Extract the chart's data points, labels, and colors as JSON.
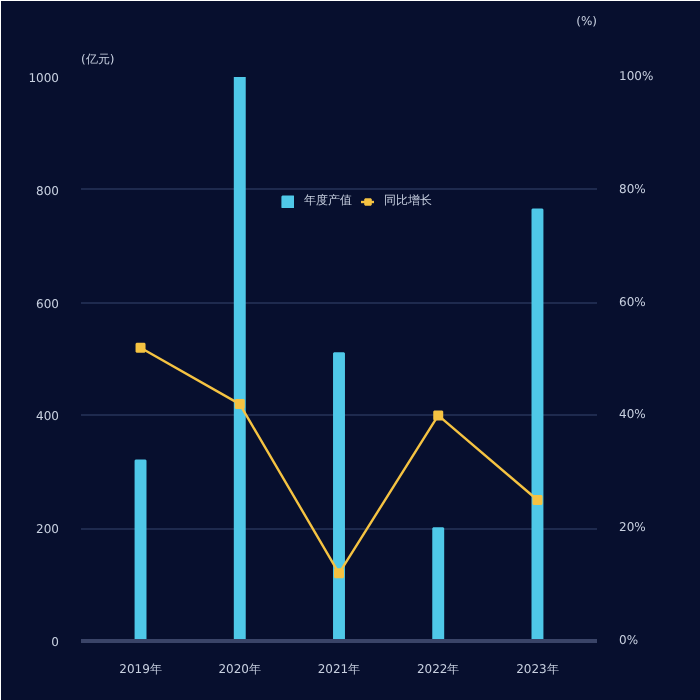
{
  "chart_data": {
    "type": "bar",
    "ylabel": "(亿元)",
    "y2label": "(%)",
    "categories": [
      "2019年",
      "2020年",
      "2021年",
      "2022年",
      "2023年"
    ],
    "series": [
      {
        "name": "年度产值",
        "color": "#4fc8e8",
        "values": [
          320,
          1000,
          510,
          200,
          765
        ]
      },
      {
        "name": "同比增长",
        "type": "line",
        "axis": "y2",
        "color": "#f5c342",
        "values": [
          52,
          42,
          12,
          40,
          25
        ]
      }
    ],
    "ylim": [
      0,
      1000
    ],
    "yticks": [
      0,
      200,
      400,
      600,
      800,
      1000
    ],
    "y2lim": [
      0,
      100
    ],
    "y2ticks": [
      {
        "value": 0,
        "label": "0%"
      },
      {
        "value": 20,
        "label": "20%"
      },
      {
        "value": 40,
        "label": "40%"
      },
      {
        "value": 60,
        "label": "60%"
      },
      {
        "value": 80,
        "label": "80%"
      },
      {
        "value": 100,
        "label": "100%"
      }
    ],
    "grid": "y",
    "legend": "top",
    "marker": "square"
  }
}
